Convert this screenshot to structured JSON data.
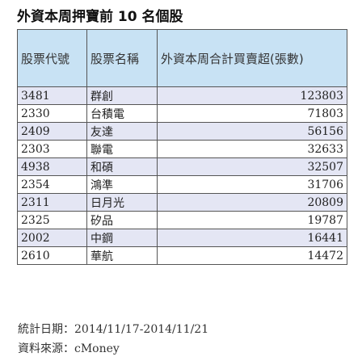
{
  "title": "外資本周押寶前 10 名個股",
  "headers": [
    "股票代號",
    "股票名稱",
    "外資本周合計買賣超(張數)"
  ],
  "rows": [
    {
      "code": "3481",
      "name": "群創",
      "value": "123803"
    },
    {
      "code": "2330",
      "name": "台積電",
      "value": "71803"
    },
    {
      "code": "2409",
      "name": "友達",
      "value": "56156"
    },
    {
      "code": "2303",
      "name": "聯電",
      "value": "32633"
    },
    {
      "code": "4938",
      "name": "和碩",
      "value": "32507"
    },
    {
      "code": "2354",
      "name": "鴻準",
      "value": "31706"
    },
    {
      "code": "2311",
      "name": "日月光",
      "value": "20809"
    },
    {
      "code": "2325",
      "name": "矽品",
      "value": "19787"
    },
    {
      "code": "2002",
      "name": "中鋼",
      "value": "16441"
    },
    {
      "code": "2610",
      "name": "華航",
      "value": "14472"
    }
  ],
  "footer": {
    "date_range": "統計日期：2014/11/17-2014/11/21",
    "source": "資料來源：cMoney"
  },
  "colors": {
    "header_bg": "#c8e2f4",
    "row_alt_bg": "#e4e6f4",
    "border": "#555555"
  }
}
